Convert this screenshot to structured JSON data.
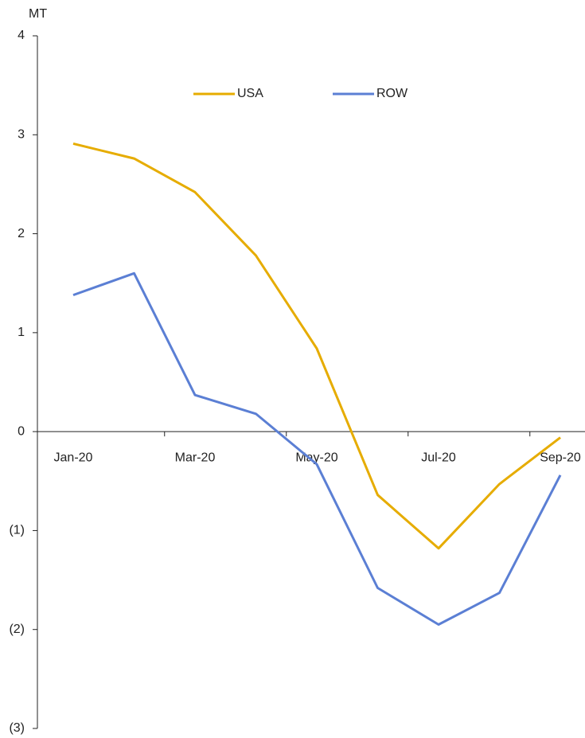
{
  "chart_data": {
    "type": "line",
    "y_label": "MT",
    "categories": [
      "Jan-20",
      null,
      "Mar-20",
      null,
      "May-20",
      null,
      "Jul-20",
      null,
      "Sep-20"
    ],
    "series": [
      {
        "name": "USA",
        "color": "#e6ac00",
        "values": [
          2.91,
          2.76,
          2.42,
          1.78,
          0.84,
          -0.64,
          -1.18,
          -0.53,
          -0.06
        ]
      },
      {
        "name": "ROW",
        "color": "#5b7fd4",
        "values": [
          1.38,
          1.6,
          0.37,
          0.18,
          -0.33,
          -1.58,
          -1.95,
          -1.63,
          -0.44
        ]
      }
    ],
    "ylim": [
      -3,
      4
    ],
    "yticks": [
      {
        "value": -3,
        "label": "(3)"
      },
      {
        "value": -2,
        "label": "(2)"
      },
      {
        "value": -1,
        "label": "(1)"
      },
      0,
      1,
      2,
      3,
      4
    ],
    "legend": "top"
  }
}
